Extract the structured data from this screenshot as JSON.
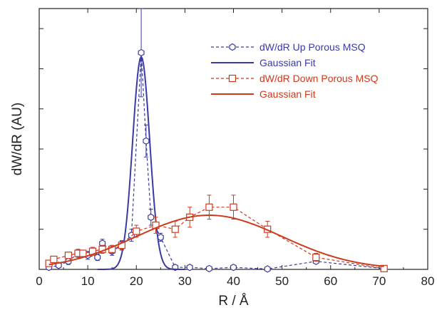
{
  "chart_data": {
    "type": "line",
    "xlabel": "R / Å",
    "ylabel": "dW/dR (AU)",
    "xlim": [
      0,
      80
    ],
    "ylim": [
      0,
      6.5
    ],
    "xticks": [
      "0",
      "10",
      "20",
      "30",
      "40",
      "50",
      "60",
      "70",
      "80"
    ],
    "grid": false,
    "legend_position": "top-right",
    "colors": {
      "up": "#3a3aa6",
      "down": "#cc3a1e",
      "axis": "#222222"
    },
    "series": [
      {
        "name": "dW/dR Up Porous MSQ",
        "style": "dashed-markers",
        "marker": "hexagon",
        "color": "#3a3aa6",
        "x": [
          2,
          4,
          6,
          8,
          10,
          12,
          13,
          15,
          17,
          19,
          21,
          22,
          23,
          25,
          28,
          31,
          35,
          40,
          47,
          57,
          71
        ],
        "y": [
          0.05,
          0.1,
          0.2,
          0.4,
          0.35,
          0.3,
          0.65,
          0.45,
          0.6,
          0.85,
          5.4,
          3.2,
          1.3,
          0.8,
          0.05,
          0.05,
          0.02,
          0.05,
          0.01,
          0.2,
          0.02
        ],
        "error": [
          0.05,
          0.05,
          0.08,
          0.1,
          0.1,
          0.08,
          0.1,
          0.1,
          0.1,
          0.15,
          1.1,
          0.4,
          0.2,
          0.1,
          0.02,
          0.02,
          0.02,
          0.02,
          0.01,
          0.03,
          0.02
        ]
      },
      {
        "name": "Gaussian Fit",
        "style": "solid",
        "color": "#3a3aa6",
        "gaussian": {
          "center": 21,
          "sigma": 1.75,
          "amplitude": 5.3,
          "baseline": 0
        }
      },
      {
        "name": "dW/dR Down Porous MSQ",
        "style": "dashed-markers",
        "marker": "square",
        "color": "#cc3a1e",
        "x": [
          2,
          3,
          6,
          8,
          9,
          11,
          13,
          15,
          17,
          20,
          24,
          28,
          31,
          35,
          40,
          47,
          57,
          71
        ],
        "y": [
          0.15,
          0.25,
          0.35,
          0.4,
          0.4,
          0.45,
          0.5,
          0.5,
          0.6,
          0.95,
          1.1,
          1.0,
          1.3,
          1.55,
          1.55,
          1.0,
          0.3,
          0.02
        ],
        "error": [
          0.05,
          0.05,
          0.08,
          0.08,
          0.08,
          0.1,
          0.1,
          0.1,
          0.12,
          0.15,
          0.2,
          0.2,
          0.25,
          0.3,
          0.3,
          0.2,
          0.1,
          0.02
        ]
      },
      {
        "name": "Gaussian Fit",
        "style": "solid",
        "color": "#cc3a1e",
        "gaussian": {
          "center": 35,
          "sigma": 15,
          "amplitude": 1.35,
          "baseline": 0
        }
      }
    ]
  }
}
